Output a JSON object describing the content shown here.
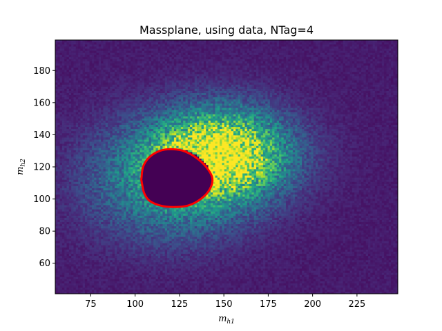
{
  "chart_data": {
    "type": "heatmap",
    "title": "Massplane, using data, NTag=4",
    "xlabel": {
      "main": "m",
      "sub": "h1"
    },
    "ylabel": {
      "main": "m",
      "sub": "h2"
    },
    "xlim": [
      55,
      248
    ],
    "ylim": [
      41,
      199
    ],
    "xticks": [
      75,
      100,
      125,
      150,
      175,
      200,
      225
    ],
    "yticks": [
      60,
      80,
      100,
      120,
      140,
      160,
      180
    ],
    "colormap": "viridis",
    "colormap_stops": [
      "#440154",
      "#482878",
      "#3e4989",
      "#31688e",
      "#26828e",
      "#1f9e89",
      "#35b779",
      "#6ece58",
      "#b5de2b",
      "#fde725"
    ],
    "bins": {
      "nx": 150,
      "ny": 120
    },
    "density": {
      "description_units": "relative counts",
      "main_peak": {
        "center": [
          150,
          128
        ],
        "sigma": [
          24,
          18
        ],
        "amplitude": 1.0
      },
      "secondary_peak": {
        "center": [
          120,
          112
        ],
        "sigma": [
          30,
          24
        ],
        "amplitude": 0.45
      },
      "background": 0.05
    },
    "masked_region": {
      "fill": "#440154",
      "outline_color": "#ff0000",
      "center": [
        123,
        113
      ],
      "semi_axes": [
        19.5,
        18
      ],
      "boundary_points": [
        [
          103.5,
          112
        ],
        [
          104.5,
          120
        ],
        [
          108,
          126
        ],
        [
          114,
          130
        ],
        [
          120,
          131
        ],
        [
          127,
          130
        ],
        [
          134,
          126
        ],
        [
          140,
          120
        ],
        [
          143.5,
          113
        ],
        [
          142,
          106
        ],
        [
          137,
          100
        ],
        [
          130,
          96
        ],
        [
          122,
          95
        ],
        [
          114,
          96
        ],
        [
          108,
          99
        ],
        [
          105,
          104
        ],
        [
          103.5,
          112
        ]
      ]
    }
  }
}
